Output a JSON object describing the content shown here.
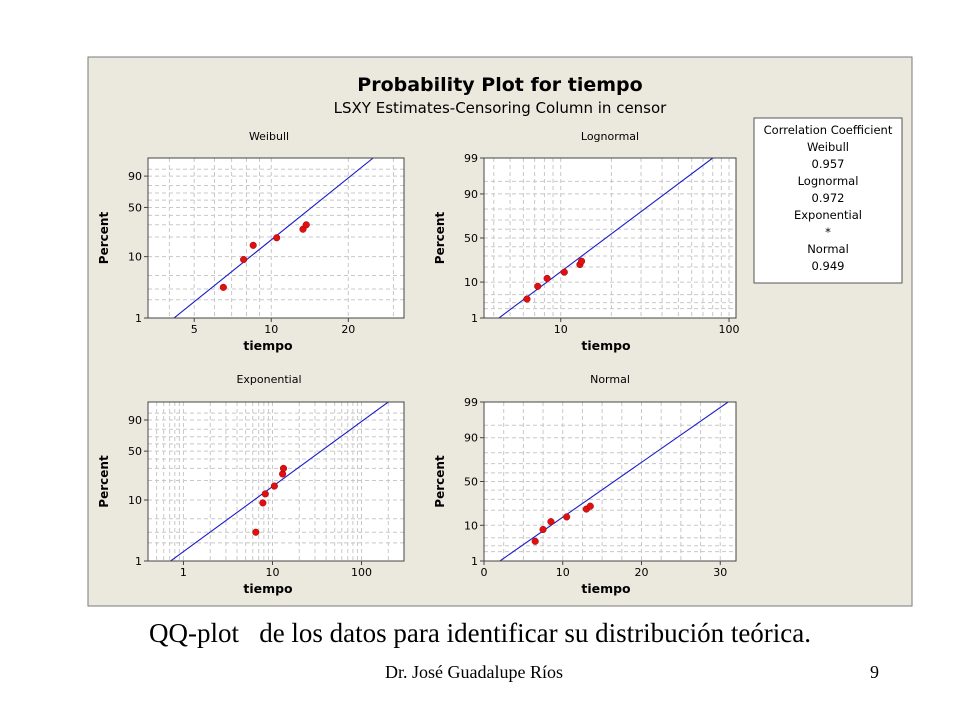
{
  "figure": {
    "title": "Probability Plot for tiempo",
    "subtitle": "LSXY Estimates-Censoring Column in censor",
    "colors": {
      "background": "#ebe9de",
      "plot_bg": "#ffffff",
      "grid": "#c8c8c8",
      "line": "#1c1cc8",
      "point": "#e01010"
    }
  },
  "legend": {
    "lines": [
      "Correlation Coefficient",
      "Weibull",
      "0.957",
      "Lognormal",
      "0.972",
      "Exponential",
      "*",
      "Normal",
      "0.949"
    ]
  },
  "caption": "QQ-plot   de los datos para identificar su distribución teórica.",
  "footer": {
    "author": "Dr. José Guadalupe Ríos",
    "page": "9"
  },
  "chart_data": [
    {
      "type": "scatter",
      "title": "Weibull",
      "xlabel": "tiempo",
      "ylabel": "Percent",
      "x_scale": "log",
      "y_scale": "weibull",
      "xlim": [
        3.3,
        33
      ],
      "ylim": [
        1,
        99
      ],
      "x_ticks": [
        5,
        10,
        20
      ],
      "y_ticks": [
        1,
        10,
        50,
        90
      ],
      "points": [
        [
          6.5,
          3.2
        ],
        [
          7.8,
          9.0
        ],
        [
          8.5,
          15.0
        ],
        [
          10.5,
          19.5
        ],
        [
          13.3,
          26.0
        ],
        [
          13.7,
          30.0
        ]
      ],
      "fit_line": [
        [
          3.3,
          0.45
        ],
        [
          25,
          99
        ]
      ]
    },
    {
      "type": "scatter",
      "title": "Lognormal",
      "xlabel": "tiempo",
      "ylabel": "Percent",
      "x_scale": "log",
      "y_scale": "normal",
      "xlim": [
        3.5,
        110
      ],
      "ylim": [
        1,
        99
      ],
      "x_ticks": [
        10,
        100
      ],
      "y_ticks": [
        1,
        10,
        50,
        90,
        99
      ],
      "points": [
        [
          6.3,
          3.8
        ],
        [
          7.3,
          8.0
        ],
        [
          8.3,
          12.0
        ],
        [
          10.5,
          16.0
        ],
        [
          13.0,
          22.0
        ],
        [
          13.3,
          25.0
        ]
      ],
      "fit_line": [
        [
          3.5,
          0.4
        ],
        [
          80,
          99
        ]
      ]
    },
    {
      "type": "scatter",
      "title": "Exponential",
      "xlabel": "tiempo",
      "ylabel": "Percent",
      "x_scale": "log",
      "y_scale": "exponential",
      "xlim": [
        0.4,
        300
      ],
      "ylim": [
        1,
        99
      ],
      "x_ticks": [
        1,
        10,
        100
      ],
      "y_ticks": [
        1,
        10,
        50,
        90
      ],
      "points": [
        [
          6.5,
          3.0
        ],
        [
          7.8,
          9.0
        ],
        [
          8.3,
          12.5
        ],
        [
          10.5,
          16.5
        ],
        [
          13.0,
          25.0
        ],
        [
          13.3,
          30.0
        ]
      ],
      "fit_line": [
        [
          0.55,
          0.75
        ],
        [
          200,
          99
        ]
      ]
    },
    {
      "type": "scatter",
      "title": "Normal",
      "xlabel": "tiempo",
      "ylabel": "Percent",
      "x_scale": "linear",
      "y_scale": "normal",
      "xlim": [
        0,
        32
      ],
      "ylim": [
        1,
        99
      ],
      "x_ticks": [
        0,
        10,
        20,
        30
      ],
      "y_ticks": [
        1,
        10,
        50,
        90,
        99
      ],
      "points": [
        [
          6.5,
          4.0
        ],
        [
          7.5,
          8.0
        ],
        [
          8.5,
          12.0
        ],
        [
          10.5,
          15.0
        ],
        [
          13.0,
          21.0
        ],
        [
          13.5,
          23.5
        ]
      ],
      "fit_line": [
        [
          1.5,
          0.8
        ],
        [
          31,
          99
        ]
      ]
    }
  ]
}
